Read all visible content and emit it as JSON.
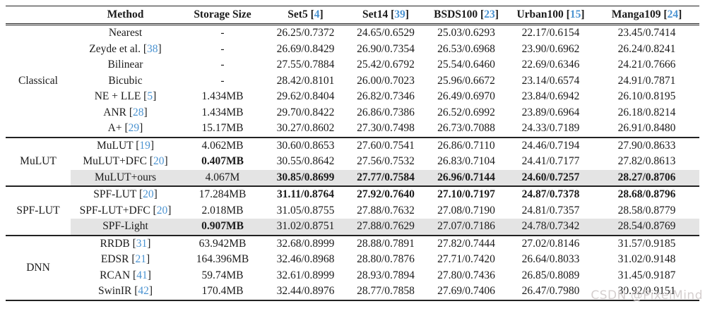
{
  "colors": {
    "background": "#ffffff",
    "text": "#1b1b1b",
    "rule_dark": "#222222",
    "citation_blue": "#4b93d1",
    "row_highlight": "#e4e4e4",
    "watermark_gray": "#d5cfcf"
  },
  "watermark": {
    "text": "CSDN @PixelMind"
  },
  "table": {
    "columns": [
      {
        "key": "group",
        "label": "",
        "cite": null
      },
      {
        "key": "method",
        "label": "Method",
        "cite": null
      },
      {
        "key": "storage",
        "label": "Storage Size",
        "cite": null
      },
      {
        "key": "set5",
        "label": "Set5",
        "cite": "4"
      },
      {
        "key": "set14",
        "label": "Set14",
        "cite": "39"
      },
      {
        "key": "bsds100",
        "label": "BSDS100",
        "cite": "23"
      },
      {
        "key": "urban100",
        "label": "Urban100",
        "cite": "15"
      },
      {
        "key": "manga109",
        "label": "Manga109",
        "cite": "24"
      }
    ],
    "groups": [
      {
        "name": "Classical",
        "rows": [
          {
            "method": "Nearest",
            "cite": null,
            "storage": "-",
            "storage_bold": false,
            "highlight": false,
            "cells": [
              {
                "v": "26.25/0.7372",
                "bold": false
              },
              {
                "v": "24.65/0.6529",
                "bold": false
              },
              {
                "v": "25.03/0.6293",
                "bold": false
              },
              {
                "v": "22.17/0.6154",
                "bold": false
              },
              {
                "v": "23.45/0.7414",
                "bold": false
              }
            ]
          },
          {
            "method": "Zeyde et al.",
            "cite": "38",
            "storage": "-",
            "storage_bold": false,
            "highlight": false,
            "cells": [
              {
                "v": "26.69/0.8429",
                "bold": false
              },
              {
                "v": "26.90/0.7354",
                "bold": false
              },
              {
                "v": "26.53/0.6968",
                "bold": false
              },
              {
                "v": "23.90/0.6962",
                "bold": false
              },
              {
                "v": "26.24/0.8241",
                "bold": false
              }
            ]
          },
          {
            "method": "Bilinear",
            "cite": null,
            "storage": "-",
            "storage_bold": false,
            "highlight": false,
            "cells": [
              {
                "v": "27.55/0.7884",
                "bold": false
              },
              {
                "v": "25.42/0.6792",
                "bold": false
              },
              {
                "v": "25.54/0.6460",
                "bold": false
              },
              {
                "v": "22.69/0.6346",
                "bold": false
              },
              {
                "v": "24.21/0.7666",
                "bold": false
              }
            ]
          },
          {
            "method": "Bicubic",
            "cite": null,
            "storage": "-",
            "storage_bold": false,
            "highlight": false,
            "cells": [
              {
                "v": "28.42/0.8101",
                "bold": false
              },
              {
                "v": "26.00/0.7023",
                "bold": false
              },
              {
                "v": "25.96/0.6672",
                "bold": false
              },
              {
                "v": "23.14/0.6574",
                "bold": false
              },
              {
                "v": "24.91/0.7871",
                "bold": false
              }
            ]
          },
          {
            "method": "NE + LLE",
            "cite": "5",
            "storage": "1.434MB",
            "storage_bold": false,
            "highlight": false,
            "cells": [
              {
                "v": "29.62/0.8404",
                "bold": false
              },
              {
                "v": "26.82/0.7346",
                "bold": false
              },
              {
                "v": "26.49/0.6970",
                "bold": false
              },
              {
                "v": "23.84/0.6942",
                "bold": false
              },
              {
                "v": "26.10/0.8195",
                "bold": false
              }
            ]
          },
          {
            "method": "ANR",
            "cite": "28",
            "storage": "1.434MB",
            "storage_bold": false,
            "highlight": false,
            "cells": [
              {
                "v": "29.70/0.8422",
                "bold": false
              },
              {
                "v": "26.86/0.7386",
                "bold": false
              },
              {
                "v": "26.52/0.6992",
                "bold": false
              },
              {
                "v": "23.89/0.6964",
                "bold": false
              },
              {
                "v": "26.18/0.8214",
                "bold": false
              }
            ]
          },
          {
            "method": "A+",
            "cite": "29",
            "storage": "15.17MB",
            "storage_bold": false,
            "highlight": false,
            "cells": [
              {
                "v": "30.27/0.8602",
                "bold": false
              },
              {
                "v": "27.30/0.7498",
                "bold": false
              },
              {
                "v": "26.73/0.7088",
                "bold": false
              },
              {
                "v": "24.33/0.7189",
                "bold": false
              },
              {
                "v": "26.91/0.8480",
                "bold": false
              }
            ]
          }
        ]
      },
      {
        "name": "MuLUT",
        "rows": [
          {
            "method": "MuLUT",
            "cite": "19",
            "storage": "4.062MB",
            "storage_bold": false,
            "highlight": false,
            "cells": [
              {
                "v": "30.60/0.8653",
                "bold": false
              },
              {
                "v": "27.60/0.7541",
                "bold": false
              },
              {
                "v": "26.86/0.7110",
                "bold": false
              },
              {
                "v": "24.46/0.7194",
                "bold": false
              },
              {
                "v": "27.90/0.8633",
                "bold": false
              }
            ]
          },
          {
            "method": "MuLUT+DFC",
            "cite": "20",
            "storage": "0.407MB",
            "storage_bold": true,
            "highlight": false,
            "cells": [
              {
                "v": "30.55/0.8642",
                "bold": false
              },
              {
                "v": "27.56/0.7532",
                "bold": false
              },
              {
                "v": "26.83/0.7104",
                "bold": false
              },
              {
                "v": "24.41/0.7177",
                "bold": false
              },
              {
                "v": "27.82/0.8613",
                "bold": false
              }
            ]
          },
          {
            "method": "MuLUT+ours",
            "cite": null,
            "storage": "4.067M",
            "storage_bold": false,
            "highlight": true,
            "cells": [
              {
                "v": "30.85/0.8699",
                "bold": true
              },
              {
                "v": "27.77/0.7584",
                "bold": true
              },
              {
                "v": "26.96/0.7144",
                "bold": true
              },
              {
                "v": "24.60/0.7257",
                "bold": true
              },
              {
                "v": "28.27/0.8706",
                "bold": true
              }
            ]
          }
        ]
      },
      {
        "name": "SPF-LUT",
        "rows": [
          {
            "method": "SPF-LUT",
            "cite": "20",
            "storage": "17.284MB",
            "storage_bold": false,
            "highlight": false,
            "cells": [
              {
                "v": "31.11/0.8764",
                "bold": true
              },
              {
                "v": "27.92/0.7640",
                "bold": true
              },
              {
                "v": "27.10/0.7197",
                "bold": true
              },
              {
                "v": "24.87/0.7378",
                "bold": true
              },
              {
                "v": "28.68/0.8796",
                "bold": true
              }
            ]
          },
          {
            "method": "SPF-LUT+DFC",
            "cite": "20",
            "storage": "2.018MB",
            "storage_bold": false,
            "highlight": false,
            "cells": [
              {
                "v": "31.05/0.8755",
                "bold": false
              },
              {
                "v": "27.88/0.7632",
                "bold": false
              },
              {
                "v": "27.08/0.7190",
                "bold": false
              },
              {
                "v": "24.81/0.7357",
                "bold": false
              },
              {
                "v": "28.58/0.8779",
                "bold": false
              }
            ]
          },
          {
            "method": "SPF-Light",
            "cite": null,
            "storage": "0.907MB",
            "storage_bold": true,
            "highlight": true,
            "cells": [
              {
                "v": "31.02/0.8751",
                "bold": false
              },
              {
                "v": "27.88/0.7629",
                "bold": false
              },
              {
                "v": "27.07/0.7186",
                "bold": false
              },
              {
                "v": "24.78/0.7342",
                "bold": false
              },
              {
                "v": "28.54/0.8769",
                "bold": false
              }
            ]
          }
        ]
      },
      {
        "name": "DNN",
        "rows": [
          {
            "method": "RRDB",
            "cite": "31",
            "storage": "63.942MB",
            "storage_bold": false,
            "highlight": false,
            "cells": [
              {
                "v": "32.68/0.8999",
                "bold": false
              },
              {
                "v": "28.88/0.7891",
                "bold": false
              },
              {
                "v": "27.82/0.7444",
                "bold": false
              },
              {
                "v": "27.02/0.8146",
                "bold": false
              },
              {
                "v": "31.57/0.9185",
                "bold": false
              }
            ]
          },
          {
            "method": "EDSR",
            "cite": "21",
            "storage": "164.396MB",
            "storage_bold": false,
            "highlight": false,
            "cells": [
              {
                "v": "32.46/0.8968",
                "bold": false
              },
              {
                "v": "28.80/0.7876",
                "bold": false
              },
              {
                "v": "27.71/0.7420",
                "bold": false
              },
              {
                "v": "26.64/0.8033",
                "bold": false
              },
              {
                "v": "31.02/0.9148",
                "bold": false
              }
            ]
          },
          {
            "method": "RCAN",
            "cite": "41",
            "storage": "59.74MB",
            "storage_bold": false,
            "highlight": false,
            "cells": [
              {
                "v": "32.61/0.8999",
                "bold": false
              },
              {
                "v": "28.93/0.7894",
                "bold": false
              },
              {
                "v": "27.80/0.7436",
                "bold": false
              },
              {
                "v": "26.85/0.8089",
                "bold": false
              },
              {
                "v": "31.45/0.9187",
                "bold": false
              }
            ]
          },
          {
            "method": "SwinIR",
            "cite": "42",
            "storage": "170.4MB",
            "storage_bold": false,
            "highlight": false,
            "cells": [
              {
                "v": "32.44/0.8976",
                "bold": false
              },
              {
                "v": "28.77/0.7858",
                "bold": false
              },
              {
                "v": "27.69/0.7406",
                "bold": false
              },
              {
                "v": "26.47/0.7980",
                "bold": false
              },
              {
                "v": "30.92/0.9151",
                "bold": false
              }
            ]
          }
        ]
      }
    ]
  }
}
